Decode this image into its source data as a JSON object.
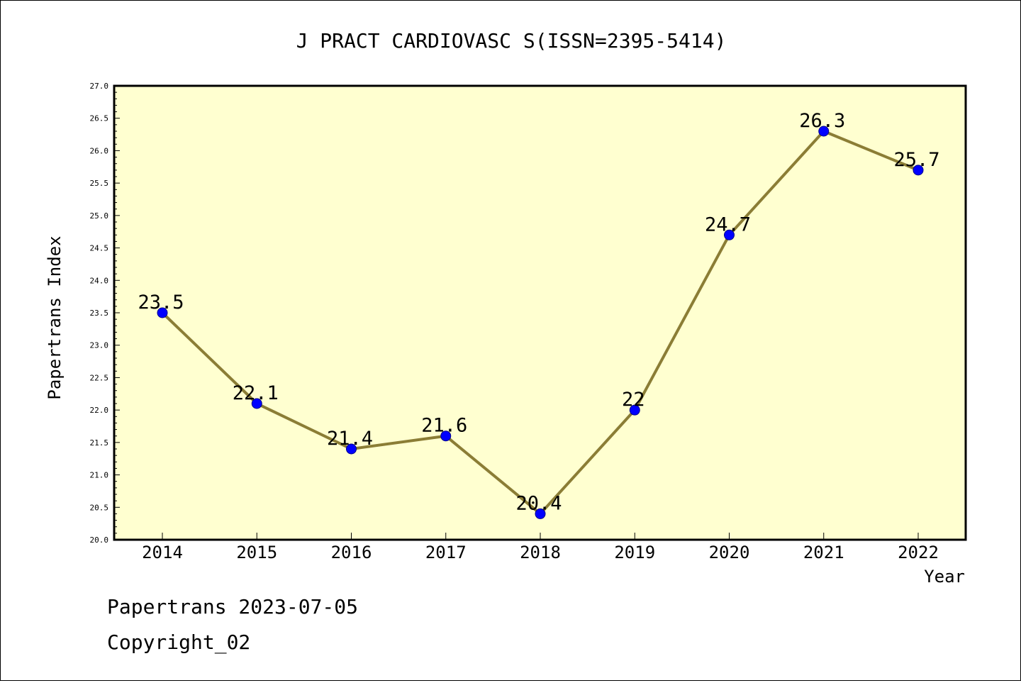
{
  "chart_data": {
    "type": "line",
    "title": "J PRACT CARDIOVASC S(ISSN=2395-5414)",
    "xlabel": "Year",
    "ylabel": "Papertrans Index",
    "categories": [
      "2014",
      "2015",
      "2016",
      "2017",
      "2018",
      "2019",
      "2020",
      "2021",
      "2022"
    ],
    "series": [
      {
        "values": [
          23.5,
          22.1,
          21.4,
          21.6,
          20.4,
          22.0,
          24.7,
          26.3,
          25.7
        ],
        "labels": [
          "23.5",
          "22.1",
          "21.4",
          "21.6",
          "20.4",
          "22",
          "24.7",
          "26.3",
          "25.7"
        ]
      }
    ],
    "ylim": [
      20.0,
      27.0
    ],
    "yticks": [
      "20.0",
      "20.5",
      "21.0",
      "21.5",
      "22.0",
      "22.5",
      "23.0",
      "23.5",
      "24.0",
      "24.5",
      "25.0",
      "25.5",
      "26.0",
      "26.5",
      "27.0"
    ],
    "grid": false,
    "colors": {
      "plot_background": "#ffffd0",
      "line": "#8b7d35",
      "marker": "#0000ff"
    }
  },
  "footer": {
    "line1": "Papertrans 2023-07-05",
    "line2": "Copyright_02"
  }
}
